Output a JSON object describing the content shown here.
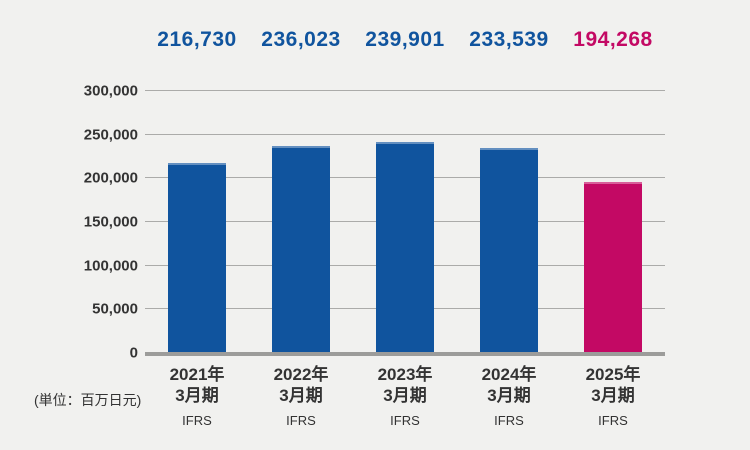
{
  "unit_label": "(単位：百万日元)",
  "colors": {
    "background": "#F1F1EF",
    "bar_blue": "#10549E",
    "bar_magenta": "#C30964",
    "gridline": "#ABABA9",
    "baseline": "#9C9C9A",
    "axis_text": "#333333"
  },
  "chart_data": {
    "type": "bar",
    "title": "",
    "xlabel": "",
    "ylabel": "",
    "unit": "(単位：百万日元)",
    "grid": true,
    "ylim": [
      0,
      300000
    ],
    "ytick_interval": 50000,
    "ytick_labels": [
      "0",
      "50,000",
      "100,000",
      "150,000",
      "200,000",
      "250,000",
      "300,000"
    ],
    "categories": [
      {
        "line1": "2021年",
        "line2": "3月期",
        "standard": "IFRS"
      },
      {
        "line1": "2022年",
        "line2": "3月期",
        "standard": "IFRS"
      },
      {
        "line1": "2023年",
        "line2": "3月期",
        "standard": "IFRS"
      },
      {
        "line1": "2024年",
        "line2": "3月期",
        "standard": "IFRS"
      },
      {
        "line1": "2025年",
        "line2": "3月期",
        "standard": "IFRS"
      }
    ],
    "values": [
      216730,
      236023,
      239901,
      233539,
      194268
    ],
    "value_labels": [
      "216,730",
      "236,023",
      "239,901",
      "233,539",
      "194,268"
    ],
    "bar_color_keys": [
      "bar_blue",
      "bar_blue",
      "bar_blue",
      "bar_blue",
      "bar_magenta"
    ]
  }
}
